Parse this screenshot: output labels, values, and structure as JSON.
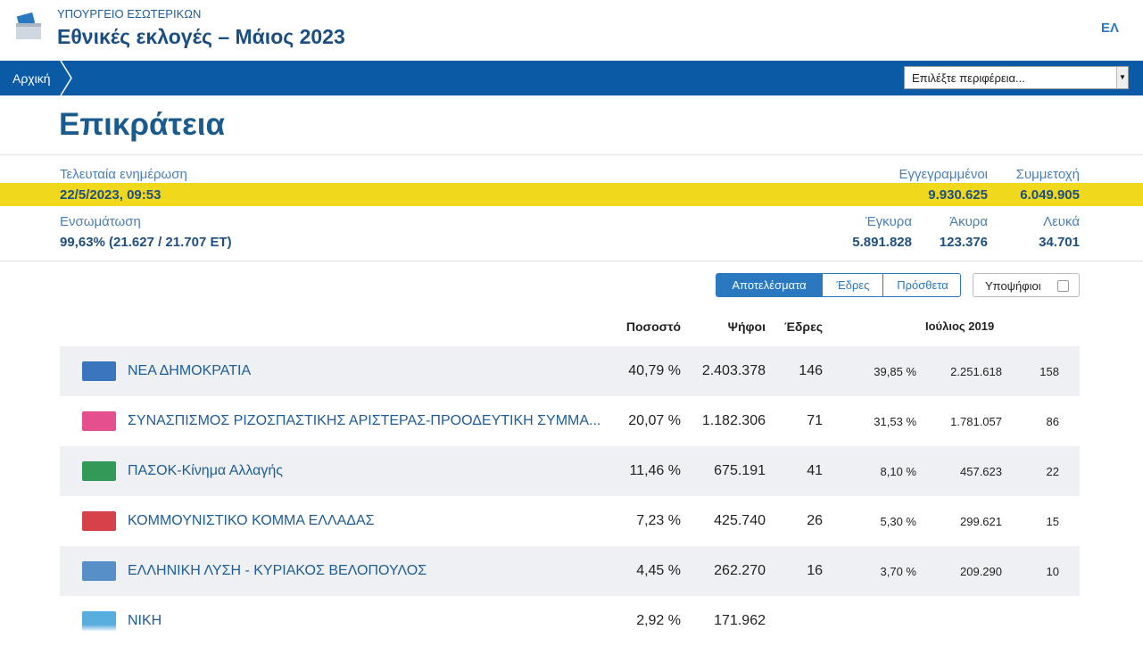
{
  "header": {
    "ministry": "ΥΠΟΥΡΓΕΙΟ ΕΣΩΤΕΡΙΚΩΝ",
    "title": "Εθνικές εκλογές – Μάιος 2023",
    "language": "ΕΛ"
  },
  "nav": {
    "breadcrumb": "Αρχική",
    "region_select": "Επιλέξτε περιφέρεια..."
  },
  "page_title": "Επικράτεια",
  "stats": {
    "last_update": {
      "label": "Τελευταία ενημέρωση",
      "value": "22/5/2023, 09:53"
    },
    "registered": {
      "label": "Εγγεγραμμένοι",
      "value": "9.930.625"
    },
    "turnout": {
      "label": "Συμμετοχή",
      "value": "6.049.905"
    },
    "incorporation": {
      "label": "Ενσωμάτωση",
      "value": "99,63% (21.627 / 21.707 ΕΤ)"
    },
    "valid": {
      "label": "Έγκυρα",
      "value": "5.891.828"
    },
    "invalid": {
      "label": "Άκυρα",
      "value": "123.376"
    },
    "blank": {
      "label": "Λευκά",
      "value": "34.701"
    }
  },
  "tabs": [
    "Αποτελέσματα",
    "Έδρες",
    "Πρόσθετα"
  ],
  "candidates_toggle": "Υποψήφιοι",
  "table": {
    "headers": [
      "Ποσοστό",
      "Ψήφοι",
      "Έδρες",
      "Ιούλιος 2019"
    ],
    "rows": [
      [
        "ΝΕΑ ΔΗΜΟΚΡΑΤΙΑ",
        "40,79 %",
        "2.403.378",
        "146",
        "39,85 %",
        "2.251.618",
        "158"
      ],
      [
        "ΣΥΝΑΣΠΙΣΜΟΣ ΡΙΖΟΣΠΑΣΤΙΚΗΣ ΑΡΙΣΤΕΡΑΣ-ΠΡΟΟΔΕΥΤΙΚΗ ΣΥΜΜΑ...",
        "20,07 %",
        "1.182.306",
        "71",
        "31,53 %",
        "1.781.057",
        "86"
      ],
      [
        "ΠΑΣΟΚ-Κίνημα Αλλαγής",
        "11,46 %",
        "675.191",
        "41",
        "8,10 %",
        "457.623",
        "22"
      ],
      [
        "ΚΟΜΜΟΥΝΙΣΤΙΚΟ ΚΟΜΜΑ ΕΛΛΑΔΑΣ",
        "7,23 %",
        "425.740",
        "26",
        "5,30 %",
        "299.621",
        "15"
      ],
      [
        "ΕΛΛΗΝΙΚΗ ΛΥΣΗ - ΚΥΡΙΑΚΟΣ ΒΕΛΟΠΟΥΛΟΣ",
        "4,45 %",
        "262.270",
        "16",
        "3,70 %",
        "209.290",
        "10"
      ],
      [
        "ΝΙΚΗ",
        "2,92 %",
        "171.962"
      ]
    ]
  }
}
